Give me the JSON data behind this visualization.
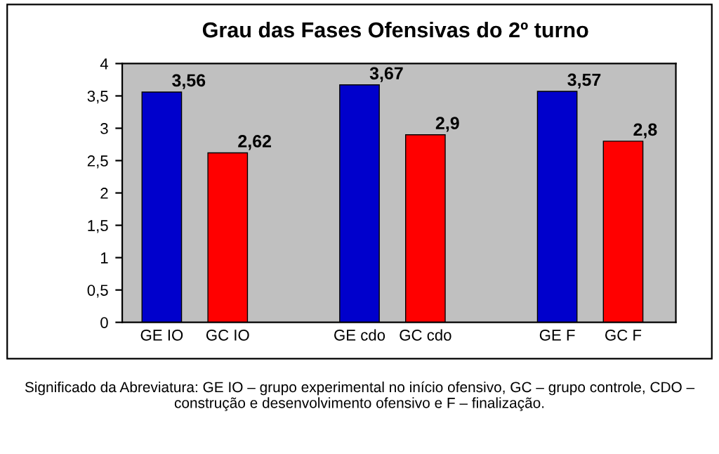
{
  "chart_data": {
    "type": "bar",
    "title": "Grau das Fases Ofensivas do 2º turno",
    "categories": [
      "GE IO",
      "GC IO",
      null,
      "GE cdo",
      "GC cdo",
      null,
      "GE F",
      "GC F"
    ],
    "values": [
      3.56,
      2.62,
      null,
      3.67,
      2.9,
      null,
      3.57,
      2.8
    ],
    "colors": [
      "#0000cc",
      "#ff0000",
      null,
      "#0000cc",
      "#ff0000",
      null,
      "#0000cc",
      "#ff0000"
    ],
    "value_labels": [
      "3,56",
      "2,62",
      null,
      "3,67",
      "2,9",
      null,
      "3,57",
      "2,8"
    ],
    "ylim": [
      0,
      4
    ],
    "yticks": [
      0,
      {
        "value": 0.5,
        "label": "0,5"
      },
      1,
      {
        "value": 1.5,
        "label": "1,5"
      },
      2,
      {
        "value": 2.5,
        "label": "2,5"
      },
      3,
      {
        "value": 3.5,
        "label": "3,5"
      },
      4
    ],
    "grid": false,
    "legend": false,
    "annotations": [
      "Significado da Abreviatura: GE IO – grupo experimental no início ofensivo, GC – grupo controle, CDO – construção e desenvolvimento ofensivo e F – finalização."
    ]
  }
}
